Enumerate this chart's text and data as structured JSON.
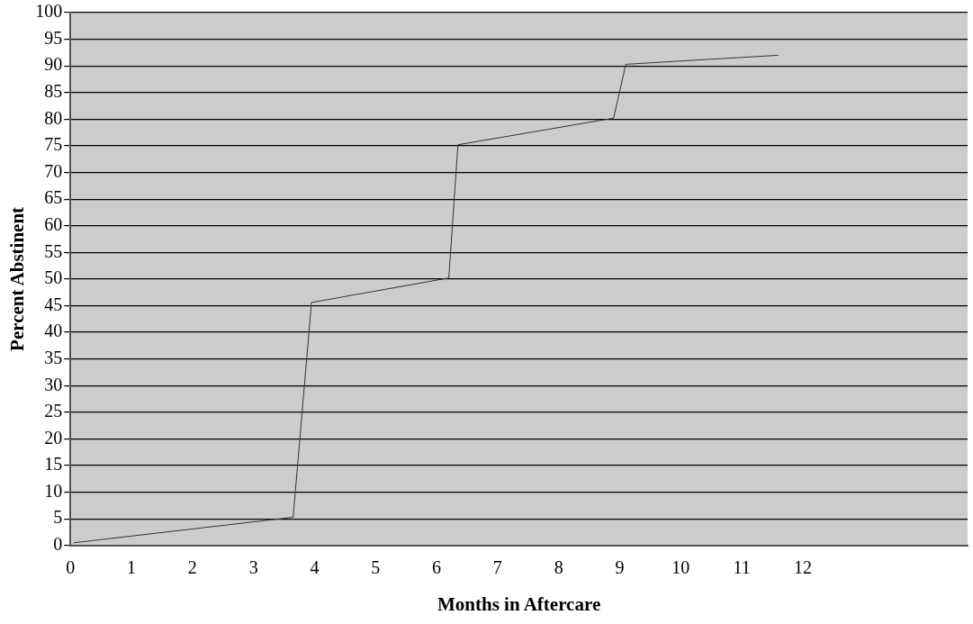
{
  "chart_data": {
    "type": "line",
    "xlabel": "Months in Aftercare",
    "ylabel": "Percent Abstinent",
    "x": [
      0.05,
      3.65,
      3.95,
      6.2,
      6.35,
      8.9,
      9.1,
      11.6
    ],
    "series": [
      {
        "color": "#333333",
        "values": [
          0.5,
          5.3,
          45.6,
          50.2,
          75.2,
          80.2,
          90.3,
          92
        ]
      }
    ],
    "xlim": [
      0,
      14.7
    ],
    "xticks": [
      0,
      1,
      2,
      3,
      4,
      5,
      6,
      7,
      8,
      9,
      10,
      11,
      12
    ],
    "ylim": [
      0,
      100
    ],
    "yticks": [
      0,
      5,
      10,
      15,
      20,
      25,
      30,
      35,
      40,
      45,
      50,
      55,
      60,
      65,
      70,
      75,
      80,
      85,
      90,
      95,
      100
    ],
    "grid": "y",
    "legend": false,
    "marker": "none",
    "line_style": "solid"
  }
}
